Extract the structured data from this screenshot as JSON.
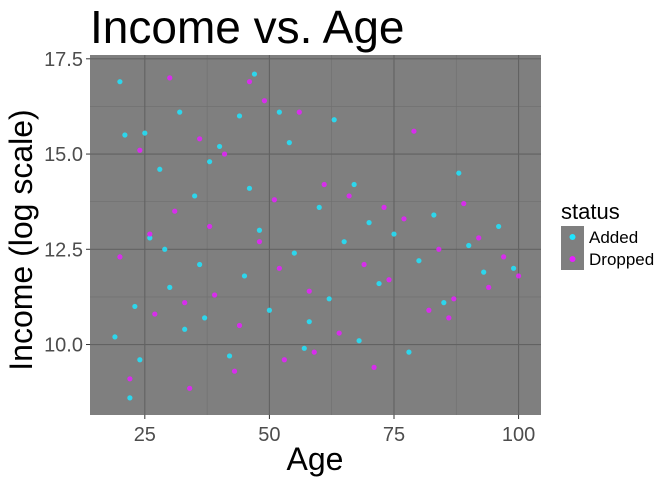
{
  "chart_data": {
    "type": "scatter",
    "title": "Income vs. Age",
    "xlabel": "Age",
    "ylabel": "Income (log scale)",
    "xlim": [
      14,
      104.5
    ],
    "ylim": [
      8.15,
      17.6
    ],
    "x_ticks": [
      25,
      50,
      75,
      100
    ],
    "x_tick_labels": [
      "25",
      "50",
      "75",
      "100"
    ],
    "y_ticks": [
      10.0,
      12.5,
      15.0,
      17.5
    ],
    "y_tick_labels": [
      "10.0",
      "12.5",
      "15.0",
      "17.5"
    ],
    "grid": true,
    "panel_background": "#7f7f7f",
    "legend": {
      "title": "status",
      "position": "right",
      "entries": [
        {
          "label": "Added",
          "color": "#1fe5ff"
        },
        {
          "label": "Dropped",
          "color": "#e61fff"
        }
      ]
    },
    "series": [
      {
        "name": "Added",
        "color": "#1fe5ff",
        "points": [
          [
            19,
            10.2
          ],
          [
            20,
            16.9
          ],
          [
            21,
            15.5
          ],
          [
            23,
            11.0
          ],
          [
            24,
            9.6
          ],
          [
            25,
            15.55
          ],
          [
            26,
            12.8
          ],
          [
            28,
            14.6
          ],
          [
            30,
            11.5
          ],
          [
            32,
            16.1
          ],
          [
            33,
            10.4
          ],
          [
            35,
            13.9
          ],
          [
            36,
            12.1
          ],
          [
            38,
            14.8
          ],
          [
            40,
            15.2
          ],
          [
            42,
            9.7
          ],
          [
            44,
            16.0
          ],
          [
            45,
            11.8
          ],
          [
            47,
            17.1
          ],
          [
            48,
            13.0
          ],
          [
            50,
            10.9
          ],
          [
            52,
            16.1
          ],
          [
            54,
            15.3
          ],
          [
            55,
            12.4
          ],
          [
            57,
            9.9
          ],
          [
            60,
            13.6
          ],
          [
            62,
            11.2
          ],
          [
            63,
            15.9
          ],
          [
            65,
            12.7
          ],
          [
            68,
            10.1
          ],
          [
            70,
            13.2
          ],
          [
            72,
            11.6
          ],
          [
            75,
            12.9
          ],
          [
            78,
            9.8
          ],
          [
            80,
            12.2
          ],
          [
            83,
            13.4
          ],
          [
            85,
            11.1
          ],
          [
            88,
            14.5
          ],
          [
            90,
            12.6
          ],
          [
            93,
            11.9
          ],
          [
            96,
            13.1
          ],
          [
            99,
            12.0
          ],
          [
            22,
            8.6
          ],
          [
            29,
            12.5
          ],
          [
            37,
            10.7
          ],
          [
            46,
            14.1
          ],
          [
            58,
            10.6
          ],
          [
            67,
            14.2
          ]
        ]
      },
      {
        "name": "Dropped",
        "color": "#e61fff",
        "points": [
          [
            20,
            12.3
          ],
          [
            22,
            9.1
          ],
          [
            24,
            15.1
          ],
          [
            27,
            10.8
          ],
          [
            30,
            17.0
          ],
          [
            31,
            13.5
          ],
          [
            34,
            8.85
          ],
          [
            36,
            15.4
          ],
          [
            39,
            11.3
          ],
          [
            41,
            15.0
          ],
          [
            43,
            9.3
          ],
          [
            46,
            16.9
          ],
          [
            48,
            12.7
          ],
          [
            49,
            16.4
          ],
          [
            51,
            13.8
          ],
          [
            53,
            9.6
          ],
          [
            56,
            16.1
          ],
          [
            58,
            11.4
          ],
          [
            61,
            14.2
          ],
          [
            64,
            10.3
          ],
          [
            66,
            13.9
          ],
          [
            69,
            12.1
          ],
          [
            71,
            9.4
          ],
          [
            74,
            11.7
          ],
          [
            77,
            13.3
          ],
          [
            79,
            15.6
          ],
          [
            82,
            10.9
          ],
          [
            84,
            12.5
          ],
          [
            87,
            11.2
          ],
          [
            89,
            13.7
          ],
          [
            92,
            12.8
          ],
          [
            94,
            11.5
          ],
          [
            97,
            12.3
          ],
          [
            100,
            11.8
          ],
          [
            26,
            12.9
          ],
          [
            33,
            11.1
          ],
          [
            38,
            13.1
          ],
          [
            44,
            10.5
          ],
          [
            52,
            12.0
          ],
          [
            59,
            9.8
          ],
          [
            73,
            13.6
          ],
          [
            86,
            10.7
          ]
        ]
      }
    ]
  }
}
